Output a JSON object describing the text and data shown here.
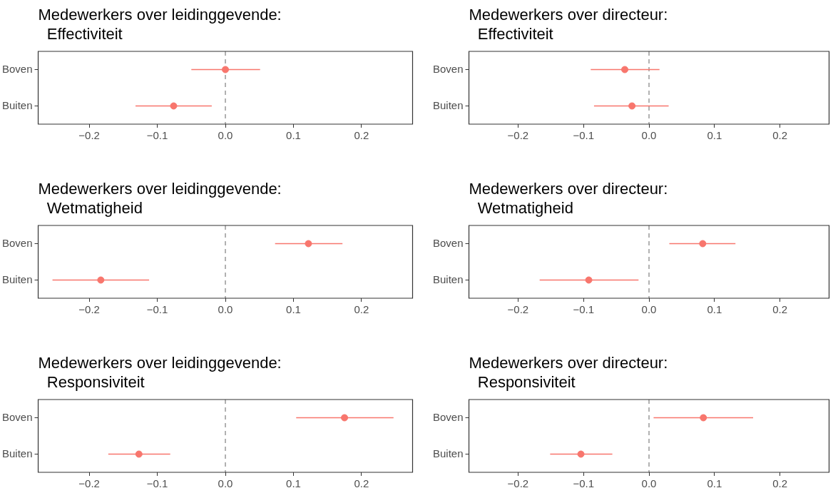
{
  "chart_data": [
    {
      "type": "scatter",
      "orientation": "horizontal",
      "title": "Medewerkers over leidinggevende:\n  Effectiviteit",
      "categories": [
        "Boven",
        "Buiten"
      ],
      "values": [
        0.0,
        -0.076
      ],
      "errors": [
        [
          -0.05,
          0.051
        ],
        [
          -0.132,
          -0.02
        ]
      ],
      "color": "#f8766d",
      "marker": "circle",
      "grid": false,
      "legend": false,
      "xlim": [
        -0.275,
        0.275
      ],
      "xticks": [
        {
          "value": -0.2,
          "label": "−0.2"
        },
        {
          "value": -0.1,
          "label": "−0.1"
        },
        {
          "value": 0,
          "label": "0.0"
        },
        {
          "value": 0.1,
          "label": "0.1"
        },
        {
          "value": 0.2,
          "label": "0.2"
        }
      ],
      "ref_lines": [
        {
          "axis": "x",
          "value": 0,
          "color": "#999999",
          "line_style": "dashed"
        }
      ]
    },
    {
      "type": "scatter",
      "orientation": "horizontal",
      "title": "Medewerkers over directeur:\n  Effectiviteit",
      "categories": [
        "Boven",
        "Buiten"
      ],
      "values": [
        -0.037,
        -0.026
      ],
      "errors": [
        [
          -0.089,
          0.016
        ],
        [
          -0.084,
          0.03
        ]
      ],
      "color": "#f8766d",
      "marker": "circle",
      "grid": false,
      "legend": false,
      "xlim": [
        -0.275,
        0.275
      ],
      "xticks": [
        {
          "value": -0.2,
          "label": "−0.2"
        },
        {
          "value": -0.1,
          "label": "−0.1"
        },
        {
          "value": 0,
          "label": "0.0"
        },
        {
          "value": 0.1,
          "label": "0.1"
        },
        {
          "value": 0.2,
          "label": "0.2"
        }
      ],
      "ref_lines": [
        {
          "axis": "x",
          "value": 0,
          "color": "#999999",
          "line_style": "dashed"
        }
      ]
    },
    {
      "type": "scatter",
      "orientation": "horizontal",
      "title": "Medewerkers over leidinggevende:\n  Wetmatigheid",
      "categories": [
        "Boven",
        "Buiten"
      ],
      "values": [
        0.122,
        -0.183
      ],
      "errors": [
        [
          0.073,
          0.172
        ],
        [
          -0.254,
          -0.112
        ]
      ],
      "color": "#f8766d",
      "marker": "circle",
      "grid": false,
      "legend": false,
      "xlim": [
        -0.275,
        0.275
      ],
      "xticks": [
        {
          "value": -0.2,
          "label": "−0.2"
        },
        {
          "value": -0.1,
          "label": "−0.1"
        },
        {
          "value": 0,
          "label": "0.0"
        },
        {
          "value": 0.1,
          "label": "0.1"
        },
        {
          "value": 0.2,
          "label": "0.2"
        }
      ],
      "ref_lines": [
        {
          "axis": "x",
          "value": 0,
          "color": "#999999",
          "line_style": "dashed"
        }
      ]
    },
    {
      "type": "scatter",
      "orientation": "horizontal",
      "title": "Medewerkers over directeur:\n  Wetmatigheid",
      "categories": [
        "Boven",
        "Buiten"
      ],
      "values": [
        0.082,
        -0.092
      ],
      "errors": [
        [
          0.031,
          0.132
        ],
        [
          -0.167,
          -0.016
        ]
      ],
      "color": "#f8766d",
      "marker": "circle",
      "grid": false,
      "legend": false,
      "xlim": [
        -0.275,
        0.275
      ],
      "xticks": [
        {
          "value": -0.2,
          "label": "−0.2"
        },
        {
          "value": -0.1,
          "label": "−0.1"
        },
        {
          "value": 0,
          "label": "0.0"
        },
        {
          "value": 0.1,
          "label": "0.1"
        },
        {
          "value": 0.2,
          "label": "0.2"
        }
      ],
      "ref_lines": [
        {
          "axis": "x",
          "value": 0,
          "color": "#999999",
          "line_style": "dashed"
        }
      ]
    },
    {
      "type": "scatter",
      "orientation": "horizontal",
      "title": "Medewerkers over leidinggevende:\n  Responsiviteit",
      "categories": [
        "Boven",
        "Buiten"
      ],
      "values": [
        0.175,
        -0.127
      ],
      "errors": [
        [
          0.104,
          0.247
        ],
        [
          -0.172,
          -0.081
        ]
      ],
      "color": "#f8766d",
      "marker": "circle",
      "grid": false,
      "legend": false,
      "xlim": [
        -0.275,
        0.275
      ],
      "xticks": [
        {
          "value": -0.2,
          "label": "−0.2"
        },
        {
          "value": -0.1,
          "label": "−0.1"
        },
        {
          "value": 0,
          "label": "0.0"
        },
        {
          "value": 0.1,
          "label": "0.1"
        },
        {
          "value": 0.2,
          "label": "0.2"
        }
      ],
      "ref_lines": [
        {
          "axis": "x",
          "value": 0,
          "color": "#999999",
          "line_style": "dashed"
        }
      ]
    },
    {
      "type": "scatter",
      "orientation": "horizontal",
      "title": "Medewerkers over directeur:\n  Responsiviteit",
      "categories": [
        "Boven",
        "Buiten"
      ],
      "values": [
        0.083,
        -0.104
      ],
      "errors": [
        [
          0.007,
          0.159
        ],
        [
          -0.151,
          -0.056
        ]
      ],
      "color": "#f8766d",
      "marker": "circle",
      "grid": false,
      "legend": false,
      "xlim": [
        -0.275,
        0.275
      ],
      "xticks": [
        {
          "value": -0.2,
          "label": "−0.2"
        },
        {
          "value": -0.1,
          "label": "−0.1"
        },
        {
          "value": 0,
          "label": "0.0"
        },
        {
          "value": 0.1,
          "label": "0.1"
        },
        {
          "value": 0.2,
          "label": "0.2"
        }
      ],
      "ref_lines": [
        {
          "axis": "x",
          "value": 0,
          "color": "#999999",
          "line_style": "dashed"
        }
      ]
    }
  ]
}
